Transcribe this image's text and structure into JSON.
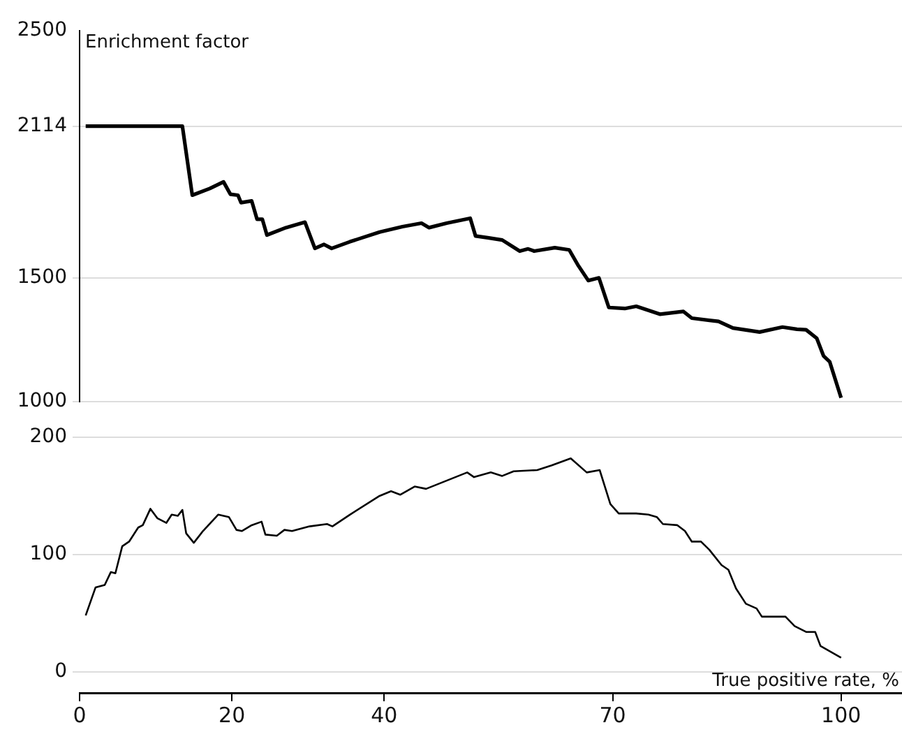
{
  "chart_data": [
    {
      "type": "line",
      "ylabel": "Enrichment factor",
      "xlim": [
        0,
        108
      ],
      "ylim": [
        1000,
        2500
      ],
      "yticks": [
        1000,
        1500,
        2114,
        2500
      ],
      "grid": "y",
      "tick_labels": "y",
      "legend": false,
      "marker": "none",
      "line_style": "solid",
      "x": [
        0.8,
        13.5,
        14.8,
        17.1,
        18.9,
        19.8,
        20.8,
        21.2,
        22.6,
        23.3,
        24.0,
        24.6,
        27.1,
        29.6,
        30.9,
        32.1,
        33.1,
        35.5,
        39.4,
        42.4,
        44.9,
        45.9,
        48.2,
        51.3,
        52.0,
        53.6,
        55.5,
        57.8,
        58.9,
        59.7,
        62.4,
        64.3,
        65.5,
        66.8,
        68.2,
        69.5,
        71.6,
        73.1,
        76.2,
        79.3,
        80.4,
        83.9,
        85.8,
        89.3,
        92.3,
        94.2,
        95.4,
        96.8,
        97.7,
        98.5,
        100.0
      ],
      "series": [
        {
          "color": "#000000",
          "values": [
            2114,
            2114,
            1835,
            1862,
            1889,
            1839,
            1835,
            1805,
            1812,
            1738,
            1738,
            1674,
            1704,
            1726,
            1620,
            1636,
            1620,
            1647,
            1686,
            1708,
            1722,
            1704,
            1722,
            1742,
            1670,
            1663,
            1654,
            1609,
            1618,
            1609,
            1623,
            1614,
            1550,
            1490,
            1501,
            1381,
            1377,
            1386,
            1354,
            1365,
            1338,
            1325,
            1298,
            1282,
            1302,
            1293,
            1291,
            1257,
            1185,
            1162,
            1016
          ]
        }
      ]
    },
    {
      "type": "line",
      "xlabel": "True positive rate, %",
      "xlim": [
        0,
        108
      ],
      "xticks": [
        0,
        20,
        40,
        70,
        100
      ],
      "ylim": [
        -18,
        200
      ],
      "yticks": [
        0,
        100,
        200
      ],
      "grid": "y",
      "legend": false,
      "marker": "none",
      "line_style": "solid",
      "x": [
        0.8,
        2.1,
        3.3,
        4.1,
        4.7,
        5.6,
        6.5,
        7.7,
        8.3,
        9.3,
        10.2,
        11.4,
        12.1,
        12.9,
        13.5,
        14.0,
        15.0,
        16.2,
        18.2,
        19.6,
        20.6,
        21.3,
        22.6,
        23.9,
        24.4,
        25.9,
        26.9,
        27.9,
        30.2,
        32.5,
        33.2,
        35.5,
        39.4,
        40.9,
        42.1,
        44.0,
        45.5,
        50.9,
        51.8,
        54.0,
        55.5,
        57.0,
        60.1,
        62.0,
        64.5,
        66.6,
        68.3,
        69.7,
        70.8,
        73.1,
        74.7,
        75.8,
        76.6,
        78.5,
        79.5,
        80.4,
        81.6,
        82.7,
        84.3,
        85.2,
        86.2,
        87.5,
        88.9,
        89.6,
        92.7,
        93.9,
        95.4,
        96.6,
        97.3,
        100.0
      ],
      "series": [
        {
          "color": "#000000",
          "values": [
            48,
            72,
            74,
            85,
            84,
            107,
            111,
            123,
            125,
            139,
            131,
            127,
            134,
            133,
            138,
            118,
            110,
            120,
            134,
            132,
            121,
            120,
            125,
            128,
            117,
            116,
            121,
            120,
            124,
            126,
            124,
            134,
            150,
            154,
            151,
            158,
            156,
            170,
            166,
            170,
            167,
            171,
            172,
            176,
            182,
            170,
            172,
            143,
            135,
            135,
            134,
            132,
            126,
            125,
            120,
            111,
            111,
            104,
            91,
            87,
            71,
            58,
            54,
            47,
            47,
            39,
            34,
            34,
            22,
            12
          ]
        }
      ]
    }
  ]
}
